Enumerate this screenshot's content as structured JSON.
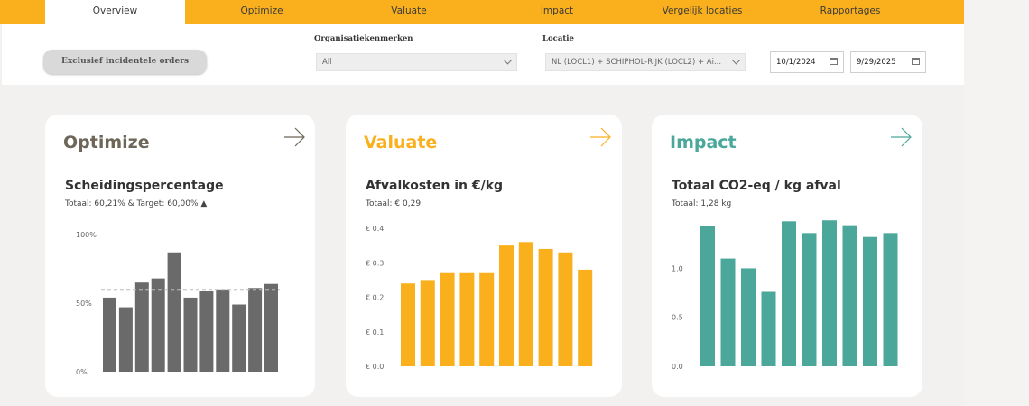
{
  "nav": {
    "tabs": [
      {
        "label": "Overview",
        "active": true
      },
      {
        "label": "Optimize"
      },
      {
        "label": "Valuate"
      },
      {
        "label": "Impact"
      },
      {
        "label": "Vergelijk locaties"
      },
      {
        "label": "Rapportages"
      }
    ]
  },
  "filters": {
    "exclude_button": "Exclusief incidentele orders",
    "org_label": "Organisatiekenmerken",
    "org_value": "All",
    "location_label": "Locatie",
    "location_value": "NL (LOCL1) + SCHIPHOL-RIJK (LOCL2) + Ai...",
    "date_from": "10/1/2024",
    "date_to": "9/29/2025"
  },
  "cards": {
    "optimize": {
      "title": "Optimize",
      "chart_title": "Scheidingspercentage",
      "subtitle": "Totaal: 60,21% & Target: 60,00% ▲"
    },
    "valuate": {
      "title": "Valuate",
      "chart_title": "Afvalkosten in €/kg",
      "subtitle": "Totaal: € 0,29"
    },
    "impact": {
      "title": "Impact",
      "chart_title": "Totaal CO2-eq / kg afval",
      "subtitle": "Totaal: 1,28 kg"
    }
  },
  "colors": {
    "nav": "#fab01c",
    "optimize": "#6a6a6a",
    "optimize_title": "#6e6658",
    "valuate": "#fab01c",
    "impact": "#4aa79a"
  },
  "chart_data": [
    {
      "type": "bar",
      "title": "Scheidingspercentage",
      "ylim": [
        0,
        100
      ],
      "yticks": [
        {
          "v": 0,
          "label": "0%"
        },
        {
          "v": 50,
          "label": "50%"
        },
        {
          "v": 100,
          "label": "100%"
        }
      ],
      "values": [
        54,
        47,
        65,
        68,
        87,
        54,
        59,
        60,
        49,
        61,
        64
      ],
      "target": 60,
      "color": "#6a6a6a"
    },
    {
      "type": "bar",
      "title": "Afvalkosten in €/kg",
      "ylim": [
        0,
        0.4
      ],
      "yticks": [
        {
          "v": 0,
          "label": "€ 0.0"
        },
        {
          "v": 0.1,
          "label": "€ 0.1"
        },
        {
          "v": 0.2,
          "label": "€ 0.2"
        },
        {
          "v": 0.3,
          "label": "€ 0.3"
        },
        {
          "v": 0.4,
          "label": "€ 0.4"
        }
      ],
      "values": [
        0.24,
        0.25,
        0.27,
        0.27,
        0.27,
        0.35,
        0.36,
        0.34,
        0.33,
        0.28
      ],
      "color": "#fab01c"
    },
    {
      "type": "bar",
      "title": "Totaal CO2-eq / kg afval",
      "ylim": [
        0,
        1.4
      ],
      "yticks": [
        {
          "v": 0,
          "label": "0.0"
        },
        {
          "v": 0.5,
          "label": "0.5"
        },
        {
          "v": 1.0,
          "label": "1.0"
        }
      ],
      "values": [
        1.43,
        1.1,
        1.0,
        0.76,
        1.48,
        1.36,
        1.49,
        1.44,
        1.32,
        1.36
      ],
      "color": "#4aa79a"
    }
  ]
}
